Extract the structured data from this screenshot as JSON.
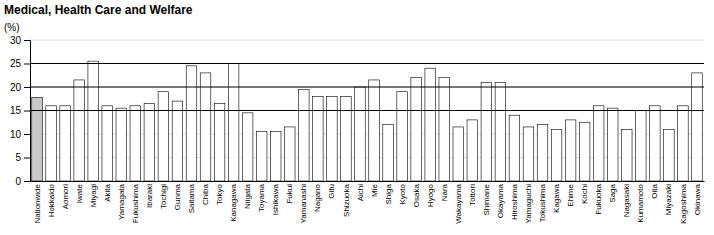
{
  "chart_data": {
    "type": "bar",
    "title": "Medical, Health Care and Welfare",
    "ylabel": "(%)",
    "categories": [
      "Nationwide",
      "Hokkaido",
      "Aomori",
      "Iwate",
      "Miyagi",
      "Akita",
      "Yamagata",
      "Fukushima",
      "Ibaraki",
      "Tochigi",
      "Gunma",
      "Saitama",
      "Chiba",
      "Tokyo",
      "Kanagawa",
      "Niigata",
      "Toyama",
      "Ishikawa",
      "Fukui",
      "Yamanashi",
      "Nagano",
      "Gifu",
      "Shizuoka",
      "Aichi",
      "Mie",
      "Shiga",
      "Kyoto",
      "Osaka",
      "Hyogo",
      "Nara",
      "Wakayama",
      "Tottori",
      "Shimane",
      "Okayama",
      "Hiroshima",
      "Yamaguchi",
      "Tokushima",
      "Kagawa",
      "Ehime",
      "Kochi",
      "Fukuoka",
      "Saga",
      "Nagasaki",
      "Kumamoto",
      "Oita",
      "Miyazaki",
      "Kagoshima",
      "Okinawa"
    ],
    "values": [
      17.8,
      16.0,
      16.0,
      21.5,
      25.5,
      16.0,
      15.5,
      16.0,
      16.5,
      19.0,
      17.0,
      24.5,
      23.0,
      16.5,
      25.0,
      14.5,
      10.5,
      10.5,
      11.5,
      19.5,
      18.0,
      18.0,
      18.0,
      20.0,
      21.5,
      12.0,
      19.0,
      22.0,
      24.0,
      22.0,
      11.5,
      13.0,
      21.0,
      21.0,
      14.0,
      11.5,
      12.0,
      11.0,
      13.0,
      12.5,
      16.0,
      15.5,
      11.0,
      15.0,
      16.0,
      11.0,
      16.0,
      23.0
    ],
    "colors": [
      "#c8c8c8",
      "#ffffff",
      "#ffffff",
      "#ffffff",
      "#ffffff",
      "#ffffff",
      "#ffffff",
      "#ffffff",
      "#ffffff",
      "#ffffff",
      "#ffffff",
      "#ffffff",
      "#ffffff",
      "#ffffff",
      "#ffffff",
      "#ffffff",
      "#ffffff",
      "#ffffff",
      "#ffffff",
      "#ffffff",
      "#ffffff",
      "#ffffff",
      "#ffffff",
      "#ffffff",
      "#ffffff",
      "#ffffff",
      "#ffffff",
      "#ffffff",
      "#ffffff",
      "#ffffff",
      "#ffffff",
      "#ffffff",
      "#ffffff",
      "#ffffff",
      "#ffffff",
      "#ffffff",
      "#ffffff",
      "#ffffff",
      "#ffffff",
      "#ffffff",
      "#ffffff",
      "#ffffff",
      "#ffffff",
      "#ffffff",
      "#ffffff",
      "#ffffff",
      "#ffffff",
      "#ffffff"
    ],
    "hlines": [
      15,
      20,
      25
    ],
    "ylim": [
      0,
      30
    ],
    "yticks": [
      0,
      5,
      10,
      15,
      20,
      25,
      30
    ],
    "grid": true
  }
}
